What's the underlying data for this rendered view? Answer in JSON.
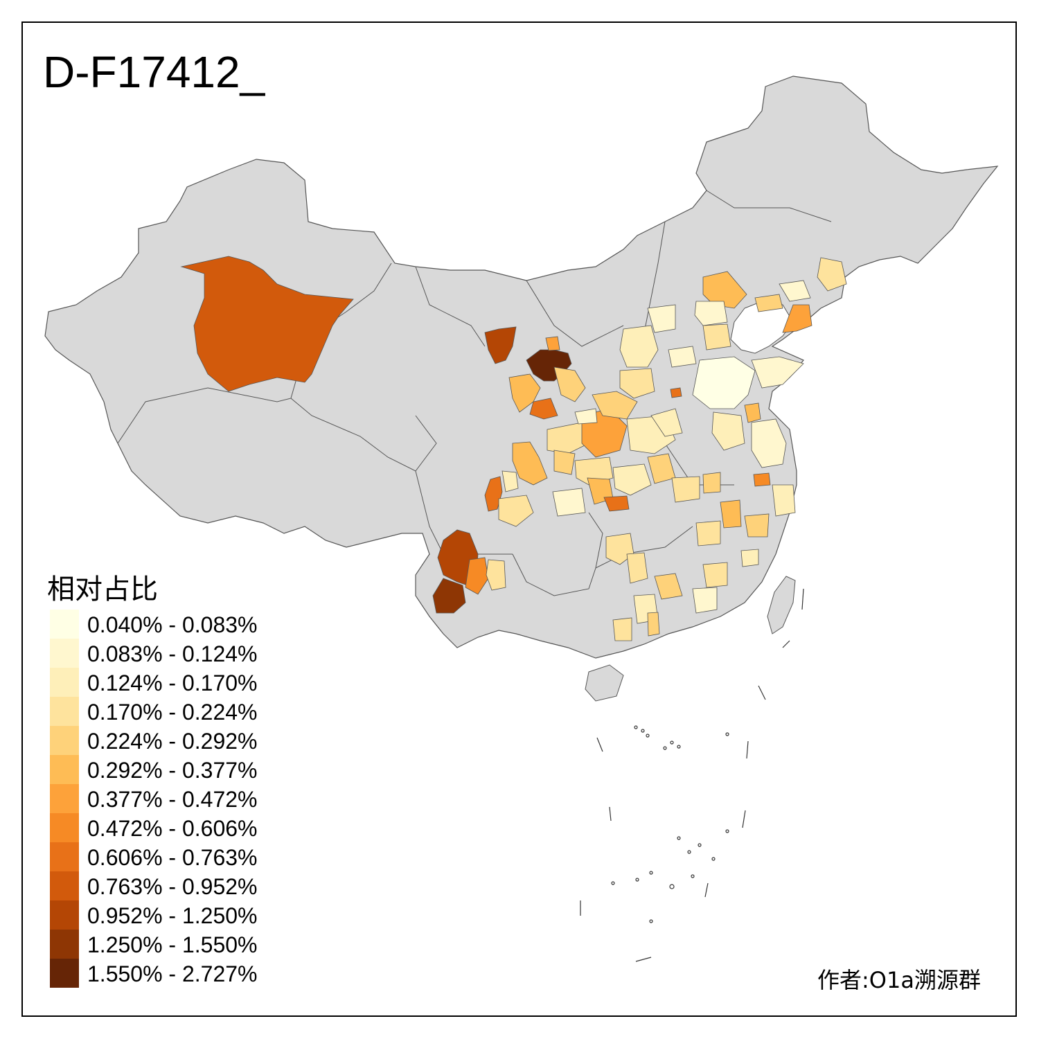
{
  "title": "D-F17412_",
  "legend": {
    "title": "相对占比",
    "classes": [
      {
        "label": "0.040% - 0.083%",
        "color": "#FFFFE5"
      },
      {
        "label": "0.083% - 0.124%",
        "color": "#FFF7CF"
      },
      {
        "label": "0.124% - 0.170%",
        "color": "#FEEFB9"
      },
      {
        "label": "0.170% - 0.224%",
        "color": "#FEE39D"
      },
      {
        "label": "0.224% - 0.292%",
        "color": "#FED27A"
      },
      {
        "label": "0.292% - 0.377%",
        "color": "#FEBC55"
      },
      {
        "label": "0.377% - 0.472%",
        "color": "#FDA23A"
      },
      {
        "label": "0.472% - 0.606%",
        "color": "#F68A25"
      },
      {
        "label": "0.606% - 0.763%",
        "color": "#E87118"
      },
      {
        "label": "0.763% - 0.952%",
        "color": "#D25A0C"
      },
      {
        "label": "0.952% - 1.250%",
        "color": "#B44605"
      },
      {
        "label": "1.250% - 1.550%",
        "color": "#8E3604"
      },
      {
        "label": "1.550% - 2.727%",
        "color": "#662506"
      }
    ]
  },
  "author": "作者:O1a溯源群",
  "colors": {
    "no_data": "#D9D9D9",
    "border": "#555555",
    "frame": "#000000"
  }
}
